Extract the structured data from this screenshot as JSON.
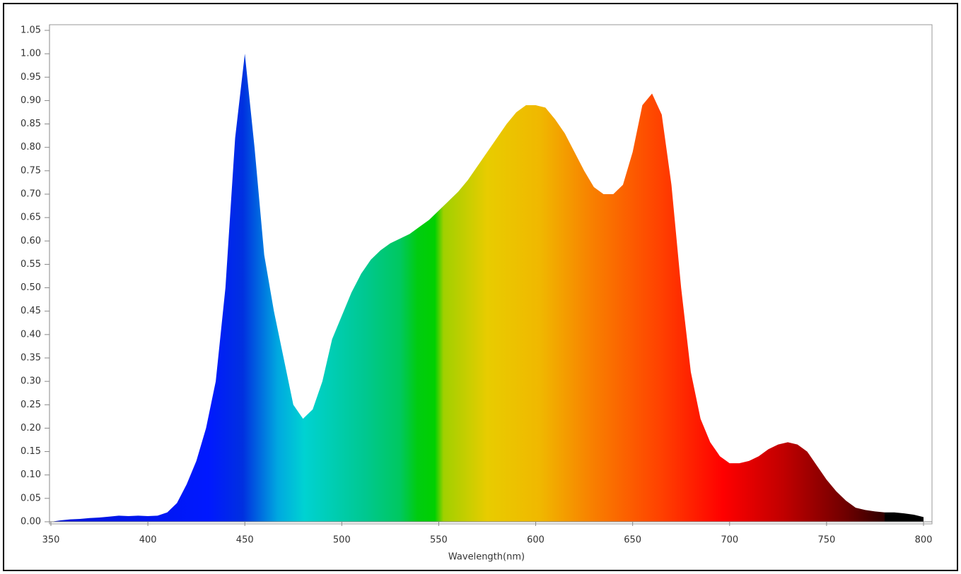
{
  "chart_data": {
    "type": "area",
    "x_label": "Wavelength(nm)",
    "x": [
      350,
      355,
      360,
      365,
      370,
      375,
      380,
      385,
      390,
      395,
      400,
      405,
      410,
      415,
      420,
      425,
      430,
      435,
      440,
      445,
      450,
      455,
      460,
      465,
      470,
      475,
      480,
      485,
      490,
      495,
      500,
      505,
      510,
      515,
      520,
      525,
      530,
      535,
      540,
      545,
      550,
      555,
      560,
      565,
      570,
      575,
      580,
      585,
      590,
      595,
      600,
      605,
      610,
      615,
      620,
      625,
      630,
      635,
      640,
      645,
      650,
      655,
      660,
      665,
      670,
      675,
      680,
      685,
      690,
      695,
      700,
      705,
      710,
      715,
      720,
      725,
      730,
      735,
      740,
      745,
      750,
      755,
      760,
      765,
      770,
      775,
      780,
      785,
      790,
      795,
      800
    ],
    "values": [
      0.0,
      0.003,
      0.005,
      0.006,
      0.008,
      0.009,
      0.011,
      0.013,
      0.012,
      0.013,
      0.012,
      0.013,
      0.02,
      0.04,
      0.08,
      0.13,
      0.2,
      0.3,
      0.5,
      0.82,
      1.0,
      0.8,
      0.57,
      0.45,
      0.35,
      0.25,
      0.22,
      0.24,
      0.3,
      0.39,
      0.44,
      0.49,
      0.53,
      0.56,
      0.58,
      0.595,
      0.605,
      0.615,
      0.63,
      0.645,
      0.665,
      0.685,
      0.705,
      0.73,
      0.76,
      0.79,
      0.82,
      0.85,
      0.875,
      0.89,
      0.89,
      0.885,
      0.86,
      0.83,
      0.79,
      0.75,
      0.715,
      0.7,
      0.7,
      0.72,
      0.79,
      0.89,
      0.915,
      0.87,
      0.72,
      0.5,
      0.32,
      0.22,
      0.17,
      0.14,
      0.125,
      0.125,
      0.13,
      0.14,
      0.155,
      0.165,
      0.17,
      0.165,
      0.15,
      0.12,
      0.09,
      0.065,
      0.045,
      0.03,
      0.025,
      0.022,
      0.02,
      0.02,
      0.018,
      0.015,
      0.01
    ],
    "xlim": [
      350,
      800
    ],
    "xticks": [
      350,
      400,
      450,
      500,
      550,
      600,
      650,
      700,
      750,
      800
    ],
    "ylim": [
      0,
      1.05
    ],
    "yticks": [
      {
        "value": 0,
        "label": "0.00"
      },
      0.05,
      {
        "value": 0.1,
        "label": "0.10"
      },
      0.15,
      {
        "value": 0.2,
        "label": "0.20"
      },
      0.25,
      {
        "value": 0.3,
        "label": "0.30"
      },
      0.35,
      {
        "value": 0.4,
        "label": "0.40"
      },
      0.45,
      {
        "value": 0.5,
        "label": "0.50"
      },
      0.55,
      {
        "value": 0.6,
        "label": "0.60"
      },
      0.65,
      {
        "value": 0.7,
        "label": "0.70"
      },
      0.75,
      {
        "value": 0.8,
        "label": "0.80"
      },
      0.85,
      {
        "value": 0.9,
        "label": "0.90"
      },
      0.95,
      {
        "value": 1,
        "label": "1.00"
      },
      1.05
    ],
    "grid": false
  }
}
